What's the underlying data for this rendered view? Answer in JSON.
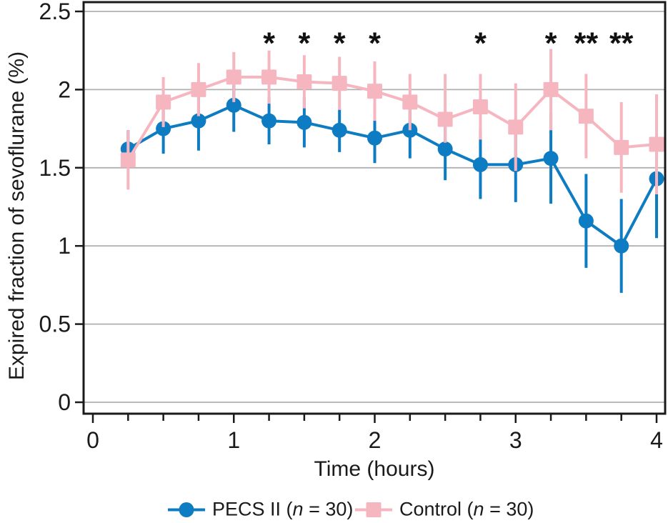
{
  "chart_data": {
    "type": "line",
    "title": "",
    "xlabel": "Time (hours)",
    "ylabel": "Expired fraction of sevoflurane (%)",
    "grid": true,
    "legend_position": "bottom",
    "axes": {
      "xlim": [
        0,
        4
      ],
      "ylim": [
        0,
        2.5
      ],
      "ytick_values": [
        0,
        0.5,
        1,
        1.5,
        2,
        2.5
      ],
      "ytick_labels": [
        "0",
        "0.5",
        "1",
        "1.5",
        "2",
        "2.5"
      ],
      "xtick_label_values": [
        0,
        1,
        2,
        3,
        4
      ],
      "xtick_labels": [
        "0",
        "1",
        "2",
        "3",
        "4"
      ],
      "xtick_minor_step": 0.25
    },
    "x": [
      0.25,
      0.5,
      0.75,
      1,
      1.25,
      1.5,
      1.75,
      2,
      2.25,
      2.5,
      2.75,
      3,
      3.25,
      3.5,
      3.75,
      4
    ],
    "series": [
      {
        "name": "PECS II (n = 30)",
        "marker": "circle",
        "color": "#0e7cc2",
        "values": [
          1.62,
          1.75,
          1.8,
          1.9,
          1.8,
          1.79,
          1.74,
          1.69,
          1.74,
          1.62,
          1.52,
          1.52,
          1.56,
          1.16,
          1.0,
          1.43
        ],
        "error_low": [
          1.5,
          1.59,
          1.61,
          1.73,
          1.65,
          1.63,
          1.6,
          1.53,
          1.56,
          1.42,
          1.3,
          1.28,
          1.27,
          0.86,
          0.7,
          1.05
        ],
        "error_high": [
          1.74,
          1.91,
          1.99,
          2.07,
          1.95,
          1.95,
          1.88,
          1.85,
          1.92,
          1.82,
          1.74,
          1.76,
          1.85,
          1.46,
          1.3,
          1.81
        ]
      },
      {
        "name": "Control (n = 30)",
        "marker": "square",
        "color": "#f6b6c0",
        "values": [
          1.55,
          1.92,
          2.0,
          2.08,
          2.08,
          2.05,
          2.04,
          1.99,
          1.92,
          1.81,
          1.89,
          1.76,
          2.0,
          1.83,
          1.63,
          1.65
        ],
        "error_low": [
          1.36,
          1.76,
          1.83,
          1.92,
          1.91,
          1.88,
          1.87,
          1.8,
          1.74,
          1.66,
          1.68,
          1.48,
          1.74,
          1.56,
          1.34,
          1.33
        ],
        "error_high": [
          1.74,
          2.08,
          2.17,
          2.24,
          2.25,
          2.22,
          2.21,
          2.18,
          2.1,
          2.1,
          2.1,
          2.04,
          2.26,
          2.1,
          1.92,
          1.97
        ]
      }
    ],
    "significance": [
      {
        "x": 1.25,
        "symbol": "*"
      },
      {
        "x": 1.5,
        "symbol": "*"
      },
      {
        "x": 1.75,
        "symbol": "*"
      },
      {
        "x": 2,
        "symbol": "*"
      },
      {
        "x": 2.75,
        "symbol": "*"
      },
      {
        "x": 3.25,
        "symbol": "*"
      },
      {
        "x": 3.5,
        "symbol": "**"
      },
      {
        "x": 3.75,
        "symbol": "**"
      }
    ],
    "colors": {
      "grid": "#b0b0b0",
      "axis": "#1a1a1a",
      "text": "#1a1a1a",
      "pecs_blue": "#0e7cc2",
      "control_pink": "#f6b6c0"
    },
    "legend": {
      "items": [
        {
          "pre": "PECS II (",
          "var": "n",
          "post": " = 30)"
        },
        {
          "pre": "Control (",
          "var": "n",
          "post": " = 30)"
        }
      ]
    }
  }
}
